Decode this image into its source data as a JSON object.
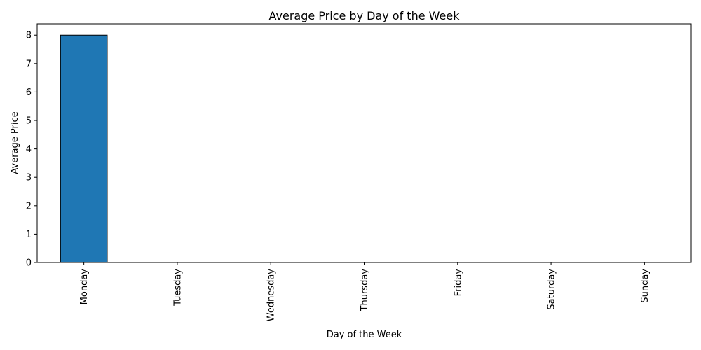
{
  "chart_data": {
    "type": "bar",
    "title": "Average Price by Day of the Week",
    "xlabel": "Day of the Week",
    "ylabel": "Average Price",
    "categories": [
      "Monday",
      "Tuesday",
      "Wednesday",
      "Thursday",
      "Friday",
      "Saturday",
      "Sunday"
    ],
    "values": [
      8,
      0,
      0,
      0,
      0,
      0,
      0
    ],
    "ylim": [
      0,
      8.4
    ],
    "yticks": [
      "0",
      "1",
      "2",
      "3",
      "4",
      "5",
      "6",
      "7",
      "8"
    ],
    "grid": false,
    "legend": "none",
    "bar_color": "#1f77b4",
    "edge_color": "#000000",
    "x_tick_rotation": "vertical"
  }
}
